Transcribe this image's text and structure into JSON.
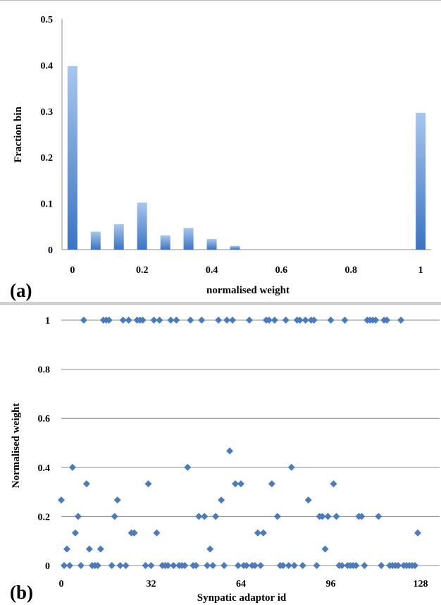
{
  "colors": {
    "bar_light": "#a8c6ef",
    "bar_dark": "#3a74c2",
    "marker": "#4a7bbd",
    "grid": "#8c8c8c"
  },
  "chart_data": [
    {
      "panel_label": "(a)",
      "type": "bar",
      "x": [
        0,
        0.0667,
        0.1333,
        0.2,
        0.2667,
        0.3333,
        0.4,
        0.4667,
        1
      ],
      "values": [
        0.398,
        0.039,
        0.055,
        0.102,
        0.031,
        0.047,
        0.023,
        0.008,
        0.297
      ],
      "xlabel": "normalised weight",
      "ylabel": "Fraction bin",
      "xlim": [
        -0.03,
        1.03
      ],
      "ylim": [
        0,
        0.5
      ],
      "xticks": [
        "0",
        "0.2",
        "0.4",
        "0.6",
        "0.8",
        "1"
      ],
      "xtick_values": [
        0,
        0.2,
        0.4,
        0.6,
        0.8,
        1
      ],
      "yticks": [
        "0",
        "0.1",
        "0.2",
        "0.3",
        "0.4",
        "0.5"
      ],
      "ytick_values": [
        0,
        0.1,
        0.2,
        0.3,
        0.4,
        0.5
      ],
      "grid": false
    },
    {
      "panel_label": "(b)",
      "type": "scatter",
      "xlabel": "Synpatic adaptor id",
      "ylabel": "Normalised weight",
      "xlim": [
        0,
        128
      ],
      "ylim": [
        0,
        1
      ],
      "xticks": [
        "0",
        "32",
        "64",
        "96",
        "128"
      ],
      "xtick_values": [
        0,
        32,
        64,
        96,
        128
      ],
      "yticks": [
        "0",
        "0.2",
        "0.4",
        "0.6",
        "0.8",
        "1"
      ],
      "ytick_values": [
        0,
        0.2,
        0.4,
        0.6,
        0.8,
        1
      ],
      "grid": true,
      "points": [
        [
          0,
          0.267
        ],
        [
          1,
          0
        ],
        [
          2,
          0.067
        ],
        [
          3,
          0
        ],
        [
          4,
          0.4
        ],
        [
          5,
          0.133
        ],
        [
          6,
          0.2
        ],
        [
          7,
          0
        ],
        [
          8,
          1
        ],
        [
          9,
          0.333
        ],
        [
          10,
          0.067
        ],
        [
          11,
          0
        ],
        [
          12,
          0
        ],
        [
          13,
          0
        ],
        [
          14,
          0.067
        ],
        [
          15,
          1
        ],
        [
          16,
          1
        ],
        [
          17,
          1
        ],
        [
          18,
          0
        ],
        [
          19,
          0.2
        ],
        [
          20,
          0.267
        ],
        [
          21,
          0
        ],
        [
          22,
          1
        ],
        [
          23,
          0
        ],
        [
          24,
          1
        ],
        [
          25,
          0.133
        ],
        [
          26,
          0.133
        ],
        [
          27,
          1
        ],
        [
          28,
          1
        ],
        [
          29,
          1
        ],
        [
          30,
          0
        ],
        [
          31,
          0.333
        ],
        [
          32,
          0
        ],
        [
          33,
          1
        ],
        [
          34,
          0.133
        ],
        [
          35,
          1
        ],
        [
          36,
          0
        ],
        [
          37,
          0
        ],
        [
          38,
          0
        ],
        [
          39,
          1
        ],
        [
          40,
          0
        ],
        [
          41,
          1
        ],
        [
          42,
          0
        ],
        [
          43,
          0
        ],
        [
          44,
          0
        ],
        [
          45,
          0.4
        ],
        [
          46,
          1
        ],
        [
          47,
          0
        ],
        [
          48,
          0
        ],
        [
          49,
          0.2
        ],
        [
          50,
          1
        ],
        [
          51,
          0.2
        ],
        [
          52,
          0
        ],
        [
          53,
          0.067
        ],
        [
          54,
          0
        ],
        [
          55,
          0.2
        ],
        [
          56,
          1
        ],
        [
          57,
          0.267
        ],
        [
          58,
          0
        ],
        [
          59,
          1
        ],
        [
          60,
          0.467
        ],
        [
          61,
          1
        ],
        [
          62,
          0.333
        ],
        [
          63,
          0
        ],
        [
          64,
          0.333
        ],
        [
          65,
          0
        ],
        [
          66,
          0
        ],
        [
          67,
          1
        ],
        [
          68,
          0
        ],
        [
          69,
          0
        ],
        [
          70,
          0.133
        ],
        [
          71,
          0
        ],
        [
          72,
          0.133
        ],
        [
          73,
          1
        ],
        [
          74,
          1
        ],
        [
          75,
          0.333
        ],
        [
          76,
          1
        ],
        [
          77,
          0.2
        ],
        [
          78,
          0
        ],
        [
          79,
          0
        ],
        [
          80,
          1
        ],
        [
          81,
          0
        ],
        [
          82,
          0.4
        ],
        [
          83,
          0
        ],
        [
          84,
          1
        ],
        [
          85,
          1
        ],
        [
          86,
          0
        ],
        [
          87,
          1
        ],
        [
          88,
          0.267
        ],
        [
          89,
          1
        ],
        [
          90,
          1
        ],
        [
          91,
          0
        ],
        [
          92,
          0.2
        ],
        [
          93,
          0.2
        ],
        [
          94,
          0.067
        ],
        [
          95,
          0.2
        ],
        [
          96,
          1
        ],
        [
          97,
          0.333
        ],
        [
          98,
          0.2
        ],
        [
          99,
          0
        ],
        [
          100,
          0
        ],
        [
          101,
          1
        ],
        [
          102,
          0
        ],
        [
          103,
          0
        ],
        [
          104,
          0
        ],
        [
          105,
          0
        ],
        [
          106,
          0.2
        ],
        [
          107,
          0.2
        ],
        [
          108,
          0
        ],
        [
          109,
          1
        ],
        [
          110,
          1
        ],
        [
          111,
          1
        ],
        [
          112,
          1
        ],
        [
          113,
          0.2
        ],
        [
          114,
          0
        ],
        [
          115,
          1
        ],
        [
          116,
          1
        ],
        [
          117,
          0
        ],
        [
          118,
          0
        ],
        [
          119,
          0
        ],
        [
          120,
          0
        ],
        [
          121,
          1
        ],
        [
          122,
          0
        ],
        [
          123,
          0
        ],
        [
          124,
          0
        ],
        [
          125,
          0
        ],
        [
          126,
          0
        ],
        [
          127,
          0.133
        ]
      ]
    }
  ]
}
